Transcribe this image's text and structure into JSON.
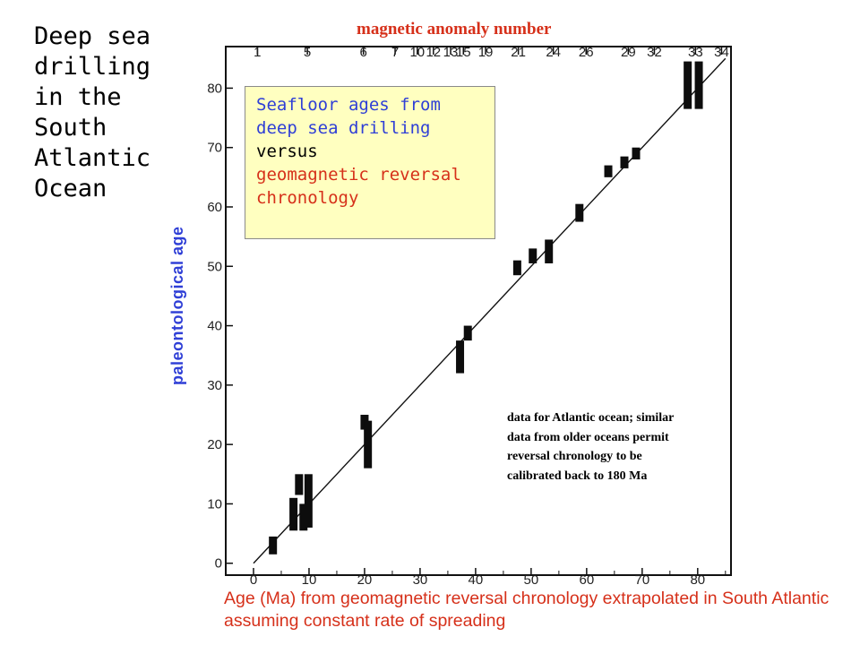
{
  "slide": {
    "title": "Deep sea drilling in the South Atlantic Ocean"
  },
  "callout": {
    "line1": "Seafloor ages from",
    "line2": "deep sea drilling",
    "line3": "versus",
    "line4": "geomagnetic reversal",
    "line5": "chronology",
    "colors": {
      "blue": "#2f3fd6",
      "black": "#000000",
      "red": "#d6301a",
      "background": "#ffffc0"
    }
  },
  "note": "data for Atlantic ocean; similar data from older oceans permit reversal chronology to be calibrated back to 180 Ma",
  "colors": {
    "accent_red": "#d6301a",
    "accent_blue": "#2f3fd6"
  },
  "chart_data": {
    "type": "scatter",
    "xlabel": "Age (Ma) from geomagnetic reversal chronology extrapolated in South Atlantic assuming constant rate of spreading",
    "ylabel": "paleontological age",
    "top_axis_label": "magnetic anomaly number",
    "xlim": [
      -5,
      86
    ],
    "ylim": [
      -2,
      87
    ],
    "x_ticks": [
      0,
      10,
      20,
      30,
      40,
      50,
      60,
      70,
      80
    ],
    "y_ticks": [
      0,
      10,
      20,
      30,
      40,
      50,
      60,
      70,
      80
    ],
    "top_ticks": [
      {
        "label": "1",
        "x": 0.7
      },
      {
        "label": "5",
        "x": 9.7
      },
      {
        "label": "6",
        "x": 19.8
      },
      {
        "label": "7",
        "x": 25.5
      },
      {
        "label": "10",
        "x": 29.5
      },
      {
        "label": "12",
        "x": 32.4
      },
      {
        "label": "13",
        "x": 35.5
      },
      {
        "label": "15",
        "x": 37.8
      },
      {
        "label": "19",
        "x": 41.8
      },
      {
        "label": "21",
        "x": 47.7
      },
      {
        "label": "24",
        "x": 54.0
      },
      {
        "label": "26",
        "x": 59.9
      },
      {
        "label": "29",
        "x": 67.5
      },
      {
        "label": "32",
        "x": 72.2
      },
      {
        "label": "33",
        "x": 79.6
      },
      {
        "label": "34",
        "x": 84.3
      }
    ],
    "reference_line": {
      "from": [
        0,
        0
      ],
      "to": [
        85,
        85
      ]
    },
    "data_ranges": [
      {
        "x": 3.5,
        "y_min": 1.5,
        "y_max": 4.5
      },
      {
        "x": 7.2,
        "y_min": 5.5,
        "y_max": 11
      },
      {
        "x": 8.2,
        "y_min": 11.5,
        "y_max": 15
      },
      {
        "x": 9.0,
        "y_min": 5.5,
        "y_max": 10
      },
      {
        "x": 9.9,
        "y_min": 6,
        "y_max": 15
      },
      {
        "x": 20.0,
        "y_min": 22.5,
        "y_max": 25
      },
      {
        "x": 20.6,
        "y_min": 16,
        "y_max": 24
      },
      {
        "x": 37.2,
        "y_min": 32,
        "y_max": 37.5
      },
      {
        "x": 38.6,
        "y_min": 37.5,
        "y_max": 40
      },
      {
        "x": 47.5,
        "y_min": 48.5,
        "y_max": 51
      },
      {
        "x": 50.3,
        "y_min": 50.5,
        "y_max": 53
      },
      {
        "x": 53.2,
        "y_min": 50.5,
        "y_max": 54.5
      },
      {
        "x": 58.7,
        "y_min": 57.5,
        "y_max": 60.5
      },
      {
        "x": 63.9,
        "y_min": 65,
        "y_max": 67
      },
      {
        "x": 66.8,
        "y_min": 66.5,
        "y_max": 68.5
      },
      {
        "x": 68.9,
        "y_min": 68,
        "y_max": 70
      },
      {
        "x": 78.2,
        "y_min": 76.5,
        "y_max": 84.5
      },
      {
        "x": 80.2,
        "y_min": 76.5,
        "y_max": 84.5
      }
    ]
  }
}
